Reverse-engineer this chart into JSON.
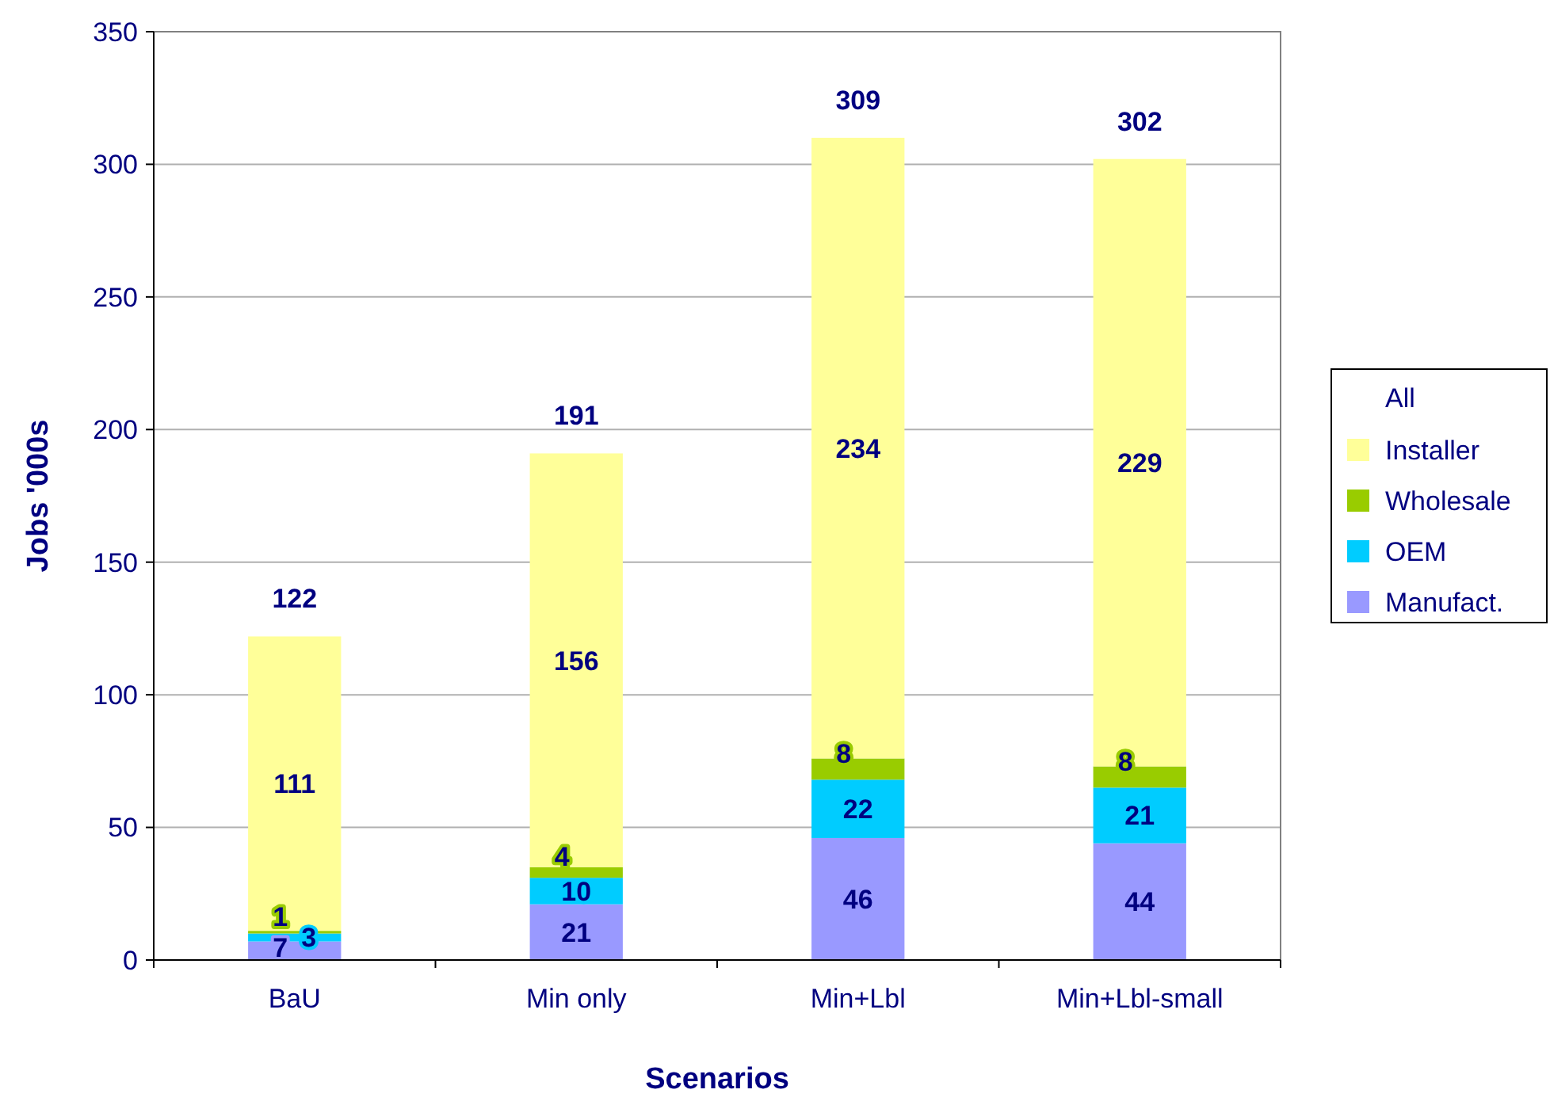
{
  "chart_data": {
    "type": "bar",
    "stacked": true,
    "xlabel": "Scenarios",
    "ylabel": "Jobs '000s",
    "legend_title": "All",
    "legend": "right",
    "categories": [
      "BaU",
      "Min only",
      "Min+Lbl",
      "Min+Lbl-small"
    ],
    "series": [
      {
        "name": "Manufact.",
        "color": "#9999ff",
        "values": [
          7,
          21,
          46,
          44
        ]
      },
      {
        "name": "OEM",
        "color": "#00ccff",
        "values": [
          3,
          10,
          22,
          21
        ]
      },
      {
        "name": "Wholesale",
        "color": "#99cc00",
        "values": [
          1,
          4,
          8,
          8
        ]
      },
      {
        "name": "Installer",
        "color": "#ffff99",
        "values": [
          111,
          156,
          234,
          229
        ]
      }
    ],
    "totals": [
      "122",
      "191",
      "309",
      "302"
    ],
    "data_labels": true,
    "grid": "y",
    "ylim": [
      0,
      350
    ],
    "yticks": [
      0,
      50,
      100,
      150,
      200,
      250,
      300,
      350
    ]
  }
}
